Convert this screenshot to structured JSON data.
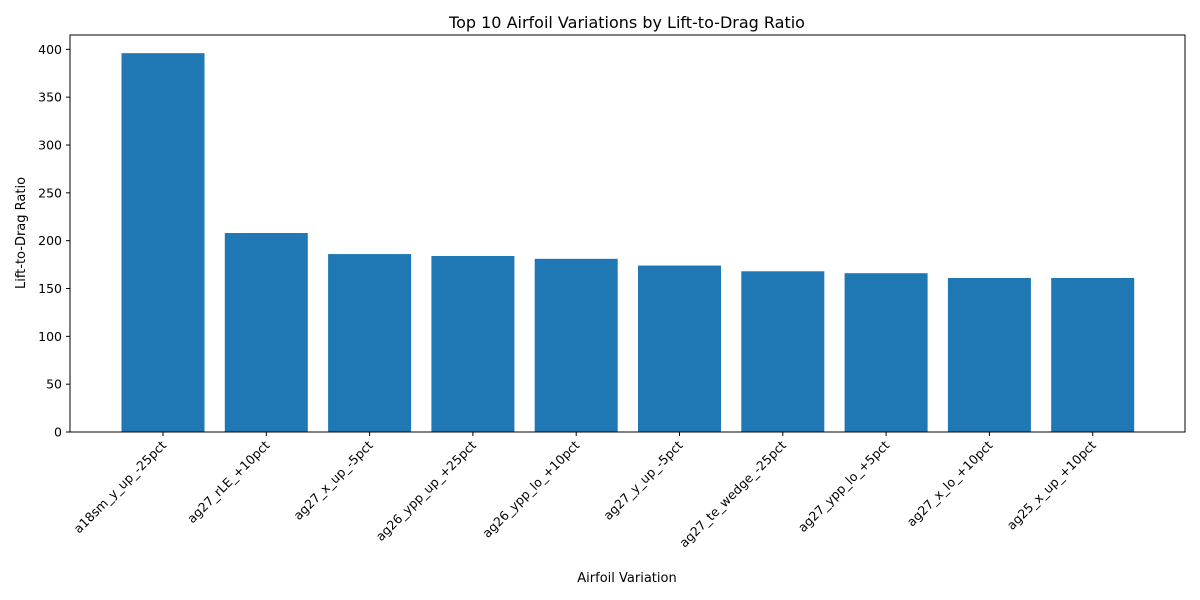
{
  "chart_data": {
    "type": "bar",
    "title": "Top 10 Airfoil Variations by Lift-to-Drag Ratio",
    "xlabel": "Airfoil Variation",
    "ylabel": "Lift-to-Drag Ratio",
    "categories": [
      "a18sm_y_up_-25pct",
      "ag27_rLE_+10pct",
      "ag27_x_up_-5pct",
      "ag26_ypp_up_+25pct",
      "ag26_ypp_lo_+10pct",
      "ag27_y_up_-5pct",
      "ag27_te_wedge_-25pct",
      "ag27_ypp_lo_+5pct",
      "ag27_x_lo_+10pct",
      "ag25_x_up_+10pct"
    ],
    "values": [
      396,
      208,
      186,
      184,
      181,
      174,
      168,
      166,
      161,
      161
    ],
    "ylim": [
      0,
      415
    ],
    "yticks": [
      0,
      50,
      100,
      150,
      200,
      250,
      300,
      350,
      400
    ],
    "grid": false,
    "bar_color": "#1f77b4"
  }
}
